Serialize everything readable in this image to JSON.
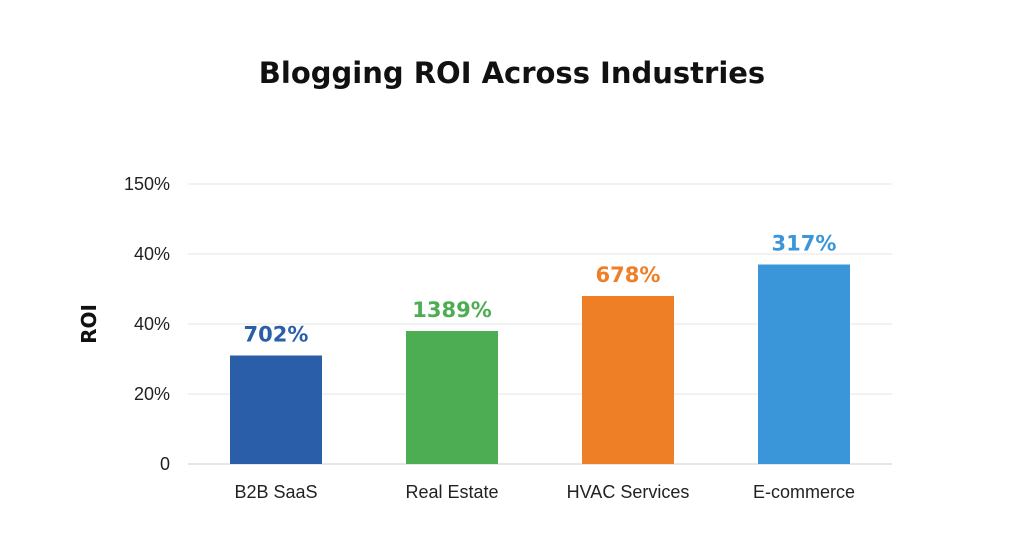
{
  "chart_data": {
    "type": "bar",
    "title": "Blogging ROI Across Industries",
    "xlabel": "",
    "ylabel": "ROI",
    "y_tick_labels": [
      "0",
      "20%",
      "40%",
      "40%",
      "150%"
    ],
    "grid": true,
    "legend": "none",
    "categories": [
      "B2B SaaS",
      "Real Estate",
      "HVAC Services",
      "E-commerce"
    ],
    "values": [
      702,
      1389,
      678,
      317
    ],
    "value_labels": [
      "702%",
      "1389%",
      "678%",
      "317%"
    ],
    "displayed_levels": [
      31,
      38,
      48,
      57
    ],
    "colors": [
      "#2b5ea8",
      "#4cad52",
      "#ef7f27",
      "#3a96d9"
    ]
  }
}
